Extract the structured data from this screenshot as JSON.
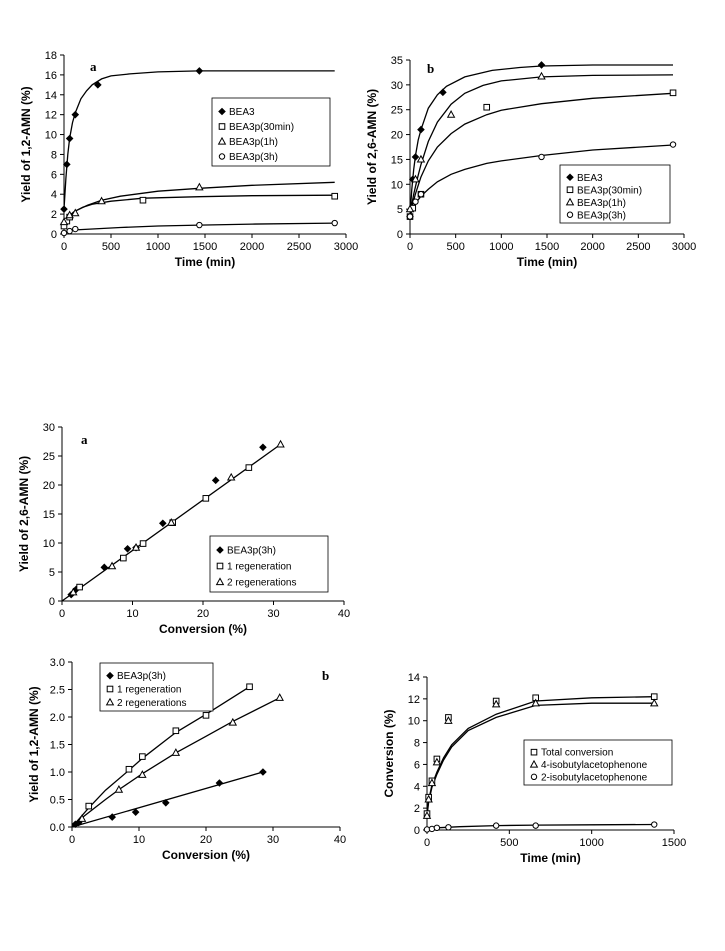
{
  "chart_data": [
    {
      "id": "c1",
      "type": "scatter",
      "panel_label": "a",
      "xlabel": "Time   (min)",
      "ylabel": "Yield   of   1,2-AMN   (%)",
      "xlim": [
        0,
        3000
      ],
      "ylim": [
        0,
        18
      ],
      "xticks": [
        0,
        500,
        1000,
        1500,
        2000,
        2500,
        3000
      ],
      "yticks": [
        0,
        2,
        4,
        6,
        8,
        10,
        12,
        14,
        16,
        18
      ],
      "legend_position": "right",
      "series": [
        {
          "name": "BEA3",
          "marker": "diamond",
          "x": [
            0,
            30,
            60,
            120,
            360,
            1440
          ],
          "y": [
            2.5,
            7,
            9.6,
            12,
            15,
            16.4
          ],
          "curve": {
            "x": [
              0,
              20,
              40,
              60,
              90,
              120,
              180,
              240,
              300,
              400,
              500,
              700,
              1000,
              1440,
              2000,
              2880
            ],
            "y": [
              2.5,
              5.6,
              8,
              9.6,
              11.2,
              12.2,
              13.6,
              14.4,
              15,
              15.6,
              15.9,
              16.1,
              16.3,
              16.4,
              16.4,
              16.4
            ]
          }
        },
        {
          "name": "BEA3p(30min)",
          "marker": "square",
          "x": [
            0,
            30,
            60,
            840,
            2880
          ],
          "y": [
            0.8,
            1.3,
            1.7,
            3.4,
            3.8
          ],
          "curve": {
            "x": [
              0,
              50,
              100,
              200,
              300,
              500,
              840,
              1440,
              2000,
              2880
            ],
            "y": [
              0.8,
              1.6,
              2.2,
              2.7,
              3.0,
              3.3,
              3.6,
              3.75,
              3.85,
              3.9
            ]
          }
        },
        {
          "name": "BEA3p(1h)",
          "marker": "triangle",
          "x": [
            0,
            60,
            120,
            400,
            1440
          ],
          "y": [
            1.2,
            1.9,
            2.1,
            3.3,
            4.7
          ],
          "curve": {
            "x": [
              0,
              60,
              120,
              250,
              400,
              600,
              840,
              1000,
              1440,
              2000,
              2880
            ],
            "y": [
              1.2,
              1.9,
              2.3,
              2.9,
              3.4,
              3.8,
              4.1,
              4.3,
              4.6,
              4.9,
              5.2
            ]
          }
        },
        {
          "name": "BEA3p(3h)",
          "marker": "circle",
          "x": [
            0,
            60,
            120,
            1440,
            2880
          ],
          "y": [
            0.1,
            0.3,
            0.5,
            0.9,
            1.1
          ],
          "curve": {
            "x": [
              0,
              100,
              300,
              600,
              1000,
              1440,
              2000,
              2880
            ],
            "y": [
              0.1,
              0.4,
              0.5,
              0.65,
              0.8,
              0.9,
              1.0,
              1.1
            ]
          }
        }
      ]
    },
    {
      "id": "c2",
      "type": "scatter",
      "panel_label": "b",
      "xlabel": "Time   (min)",
      "ylabel": "Yield   of   2,6-AMN   (%)",
      "xlim": [
        0,
        3000
      ],
      "ylim": [
        0,
        35
      ],
      "xticks": [
        0,
        500,
        1000,
        1500,
        2000,
        2500,
        3000
      ],
      "yticks": [
        0,
        5,
        10,
        15,
        20,
        25,
        30,
        35
      ],
      "legend_position": "bottom-right",
      "series": [
        {
          "name": "BEA3",
          "marker": "diamond",
          "x": [
            0,
            30,
            60,
            120,
            360,
            1440
          ],
          "y": [
            3.5,
            11,
            15.5,
            21,
            28.5,
            34
          ],
          "curve": {
            "x": [
              0,
              20,
              40,
              60,
              90,
              120,
              200,
              300,
              400,
              600,
              900,
              1200,
              1440,
              2000,
              2880
            ],
            "y": [
              3.5,
              9,
              13,
              15.8,
              18.9,
              21,
              25.3,
              28,
              29.7,
              31.6,
              32.9,
              33.5,
              33.8,
              34,
              34
            ]
          }
        },
        {
          "name": "BEA3p(30min)",
          "marker": "square",
          "x": [
            0,
            30,
            120,
            840,
            2880
          ],
          "y": [
            3.5,
            5.2,
            8,
            25.5,
            28.4
          ],
          "curve": {
            "x": [
              0,
              30,
              60,
              120,
              200,
              300,
              450,
              600,
              840,
              1000,
              1440,
              2000,
              2880
            ],
            "y": [
              3.5,
              6,
              8.1,
              11.5,
              14.7,
              17.5,
              20.2,
              22.1,
              24,
              24.9,
              26.2,
              27.3,
              28.3
            ]
          }
        },
        {
          "name": "BEA3p(1h)",
          "marker": "triangle",
          "x": [
            0,
            60,
            120,
            450,
            1440
          ],
          "y": [
            5,
            11,
            15,
            24,
            31.7
          ],
          "curve": {
            "x": [
              0,
              40,
              80,
              120,
              200,
              300,
              450,
              600,
              800,
              1000,
              1440,
              2000,
              2880
            ],
            "y": [
              4,
              8,
              11.1,
              14,
              18.6,
              22.5,
              26.1,
              28.3,
              29.9,
              30.8,
              31.6,
              31.9,
              32
            ]
          }
        },
        {
          "name": "BEA3p(3h)",
          "marker": "circle",
          "x": [
            0,
            60,
            120,
            1440,
            2880
          ],
          "y": [
            3.5,
            6.5,
            8,
            15.5,
            18
          ],
          "curve": {
            "x": [
              0,
              30,
              60,
              120,
              200,
              300,
              450,
              600,
              840,
              1000,
              1440,
              2000,
              2880
            ],
            "y": [
              3.5,
              5.2,
              6.2,
              7.6,
              9,
              10.5,
              12,
              13,
              14.2,
              14.7,
              15.8,
              16.9,
              17.9
            ]
          }
        }
      ]
    },
    {
      "id": "c3",
      "type": "scatter",
      "panel_label": "a",
      "xlabel": "Conversion   (%)",
      "ylabel": "Yield   of   2,6-AMN   (%)",
      "xlim": [
        0,
        40
      ],
      "ylim": [
        0,
        30
      ],
      "xticks": [
        0,
        10,
        20,
        30,
        40
      ],
      "yticks": [
        0,
        5,
        10,
        15,
        20,
        25,
        30
      ],
      "legend_position": "bottom-right",
      "series": [
        {
          "name": "BEA3p(3h)",
          "marker": "diamond",
          "x": [
            1.3,
            2,
            6,
            9.3,
            10.5,
            14.3,
            21.8,
            28.5
          ],
          "y": [
            1.1,
            2,
            5.8,
            9,
            9.2,
            13.4,
            20.8,
            26.5
          ]
        },
        {
          "name": "1   regeneration",
          "marker": "square",
          "x": [
            2.5,
            8.7,
            11.5,
            15.7,
            20.4,
            26.5
          ],
          "y": [
            2.4,
            7.4,
            9.9,
            13.5,
            17.7,
            23
          ]
        },
        {
          "name": "2   regenerations",
          "marker": "triangle",
          "x": [
            1.6,
            7.1,
            10.5,
            15.5,
            24,
            31
          ],
          "y": [
            1.5,
            6,
            9.2,
            13.5,
            21.3,
            27
          ]
        }
      ],
      "fit_line": {
        "x": [
          0,
          31
        ],
        "y": [
          0,
          27
        ]
      }
    },
    {
      "id": "c4",
      "type": "scatter",
      "panel_label": "b",
      "xlabel": "Conversion   (%)",
      "ylabel": "Yield   of   1,2-AMN   (%)",
      "xlim": [
        0,
        40
      ],
      "ylim": [
        0,
        3.0
      ],
      "xticks": [
        0,
        10,
        20,
        30,
        40
      ],
      "yticks": [
        0.0,
        0.5,
        1.0,
        1.5,
        2.0,
        2.5,
        3.0
      ],
      "ytick_decimals": 1,
      "legend_position": "top-left",
      "series": [
        {
          "name": "BEA3p(3h)",
          "marker": "diamond",
          "x": [
            0.5,
            1,
            6,
            9.5,
            14,
            22,
            28.5
          ],
          "y": [
            0.05,
            0.08,
            0.18,
            0.27,
            0.44,
            0.8,
            1.0
          ],
          "curve": {
            "x": [
              0,
              28.5
            ],
            "y": [
              0,
              1.0
            ]
          }
        },
        {
          "name": "1   regeneration",
          "marker": "square",
          "x": [
            2.5,
            8.5,
            10.5,
            15.5,
            20,
            26.5
          ],
          "y": [
            0.38,
            1.05,
            1.28,
            1.75,
            2.03,
            2.55
          ],
          "curve": {
            "x": [
              0,
              2.5,
              5,
              8.5,
              10.5,
              15.5,
              20,
              26.5
            ],
            "y": [
              0,
              0.35,
              0.67,
              1.03,
              1.25,
              1.72,
              2.05,
              2.55
            ]
          }
        },
        {
          "name": "2   regenerations",
          "marker": "triangle",
          "x": [
            1.5,
            7,
            10.5,
            15.5,
            24,
            31
          ],
          "y": [
            0.15,
            0.68,
            0.95,
            1.35,
            1.9,
            2.35
          ],
          "curve": {
            "x": [
              0,
              1.5,
              5,
              7,
              10.5,
              15.5,
              20,
              24,
              31
            ],
            "y": [
              0,
              0.17,
              0.5,
              0.68,
              0.97,
              1.35,
              1.65,
              1.92,
              2.35
            ]
          }
        }
      ]
    },
    {
      "id": "c5",
      "type": "scatter",
      "panel_label": "",
      "xlabel": "Time (min)",
      "ylabel": "Conversion   (%)",
      "xlim": [
        0,
        1500
      ],
      "ylim": [
        0,
        14
      ],
      "xticks": [
        0,
        500,
        1000,
        1500
      ],
      "yticks": [
        0,
        2,
        4,
        6,
        8,
        10,
        12,
        14
      ],
      "legend_position": "right",
      "series": [
        {
          "name": "Total   conversion",
          "marker": "square",
          "x": [
            0,
            10,
            30,
            60,
            130,
            420,
            660,
            1380
          ],
          "y": [
            1.5,
            3,
            4.5,
            6.5,
            10.3,
            11.8,
            12.1,
            12.2
          ],
          "curve": {
            "x": [
              0,
              10,
              30,
              60,
              100,
              150,
              250,
              420,
              660,
              1000,
              1380
            ],
            "y": [
              1.5,
              2.7,
              4.1,
              5.3,
              6.6,
              7.8,
              9.3,
              10.6,
              11.8,
              12.1,
              12.2
            ]
          }
        },
        {
          "name": "4-isobutylacetophenone",
          "marker": "triangle",
          "x": [
            0,
            10,
            30,
            60,
            130,
            420,
            660,
            1380
          ],
          "y": [
            1.3,
            2.8,
            4.3,
            6.2,
            10,
            11.5,
            11.6,
            11.6
          ],
          "curve": {
            "x": [
              0,
              10,
              30,
              60,
              100,
              150,
              250,
              420,
              660,
              1000,
              1380
            ],
            "y": [
              1.3,
              2.5,
              3.9,
              5.1,
              6.4,
              7.6,
              9.1,
              10.3,
              11.4,
              11.6,
              11.6
            ]
          }
        },
        {
          "name": "2-isobutylacetophenone",
          "marker": "circle",
          "x": [
            0,
            30,
            60,
            130,
            420,
            660,
            1380
          ],
          "y": [
            0.05,
            0.1,
            0.2,
            0.25,
            0.4,
            0.4,
            0.5
          ],
          "curve": {
            "x": [
              0,
              60,
              200,
              420,
              660,
              1000,
              1380
            ],
            "y": [
              0.05,
              0.2,
              0.3,
              0.4,
              0.45,
              0.48,
              0.5
            ]
          }
        }
      ]
    }
  ]
}
